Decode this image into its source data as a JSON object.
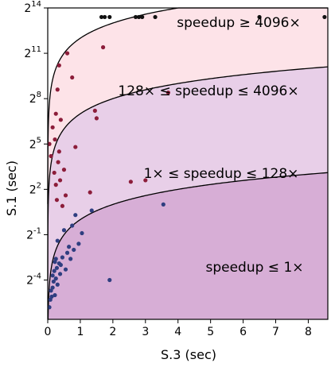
{
  "chart_data": {
    "type": "scatter",
    "xlabel": "S.3 (sec)",
    "ylabel": "S.1 (sec)",
    "xlim": [
      0,
      8.6
    ],
    "ylim_log2": [
      -6.6,
      14
    ],
    "y_scale": "log2",
    "grid": false,
    "x_ticks": [
      "0",
      "1",
      "2",
      "3",
      "4",
      "5",
      "6",
      "7",
      "8"
    ],
    "y_ticks": [
      {
        "base": "2",
        "exp": "-4"
      },
      {
        "base": "2",
        "exp": "-1"
      },
      {
        "base": "2",
        "exp": "2"
      },
      {
        "base": "2",
        "exp": "5"
      },
      {
        "base": "2",
        "exp": "8"
      },
      {
        "base": "2",
        "exp": "11"
      },
      {
        "base": "2",
        "exp": "14"
      }
    ],
    "boundaries": [
      {
        "speedup": 1
      },
      {
        "speedup": 128
      },
      {
        "speedup": 4096
      }
    ],
    "regions": [
      {
        "label": "speedup ≤ 1×",
        "color": "#d7aed6"
      },
      {
        "label": "1× ≤ speedup ≤ 128×",
        "color": "#e8cfe8"
      },
      {
        "label": "128× ≤ speedup ≤ 4096×",
        "color": "#fde3e8"
      },
      {
        "label": "speedup ≥ 4096×",
        "color": "#ffffff"
      }
    ],
    "series": [
      {
        "color": "#2f3e80",
        "points": [
          [
            0.05,
            -5.8
          ],
          [
            0.08,
            -5.3
          ],
          [
            0.1,
            -4.7
          ],
          [
            0.12,
            -5.1
          ],
          [
            0.15,
            -3.7
          ],
          [
            0.15,
            -4.5
          ],
          [
            0.18,
            -4.1
          ],
          [
            0.2,
            -3.4
          ],
          [
            0.22,
            -2.8
          ],
          [
            0.22,
            -5.0
          ],
          [
            0.25,
            -2.6
          ],
          [
            0.25,
            -3.9
          ],
          [
            0.28,
            -3.2
          ],
          [
            0.3,
            -4.3
          ],
          [
            0.3,
            -1.4
          ],
          [
            0.35,
            -2.9
          ],
          [
            0.38,
            -3.6
          ],
          [
            0.4,
            -3.0
          ],
          [
            0.45,
            -2.5
          ],
          [
            0.5,
            -0.7
          ],
          [
            0.55,
            -3.3
          ],
          [
            0.6,
            -2.2
          ],
          [
            0.65,
            -1.8
          ],
          [
            0.7,
            -2.6
          ],
          [
            0.75,
            -0.4
          ],
          [
            0.8,
            -2.0
          ],
          [
            0.85,
            0.3
          ],
          [
            0.95,
            -1.6
          ],
          [
            1.05,
            -0.9
          ],
          [
            1.35,
            0.6
          ],
          [
            1.9,
            -4.0
          ],
          [
            3.55,
            1.0
          ]
        ]
      },
      {
        "color": "#8c1d3a",
        "points": [
          [
            0.05,
            5.0
          ],
          [
            0.1,
            4.2
          ],
          [
            0.15,
            6.1
          ],
          [
            0.2,
            3.1
          ],
          [
            0.22,
            5.3
          ],
          [
            0.25,
            2.3
          ],
          [
            0.25,
            7.0
          ],
          [
            0.28,
            1.3
          ],
          [
            0.3,
            8.6
          ],
          [
            0.32,
            3.8
          ],
          [
            0.35,
            4.5
          ],
          [
            0.35,
            10.2
          ],
          [
            0.38,
            2.6
          ],
          [
            0.4,
            6.6
          ],
          [
            0.45,
            0.9
          ],
          [
            0.5,
            3.3
          ],
          [
            0.55,
            1.6
          ],
          [
            0.6,
            11.0
          ],
          [
            0.75,
            9.4
          ],
          [
            0.85,
            4.8
          ],
          [
            1.3,
            1.8
          ],
          [
            1.45,
            7.2
          ],
          [
            1.5,
            6.7
          ],
          [
            1.7,
            11.4
          ],
          [
            2.55,
            2.5
          ],
          [
            3.0,
            2.6
          ],
          [
            3.7,
            8.4
          ]
        ]
      },
      {
        "color": "#111111",
        "points": [
          [
            1.65,
            13.4
          ],
          [
            1.75,
            13.4
          ],
          [
            1.9,
            13.4
          ],
          [
            2.7,
            13.4
          ],
          [
            2.8,
            13.4
          ],
          [
            2.9,
            13.4
          ],
          [
            3.3,
            13.4
          ],
          [
            6.5,
            13.4
          ],
          [
            8.5,
            13.4
          ]
        ]
      }
    ]
  }
}
